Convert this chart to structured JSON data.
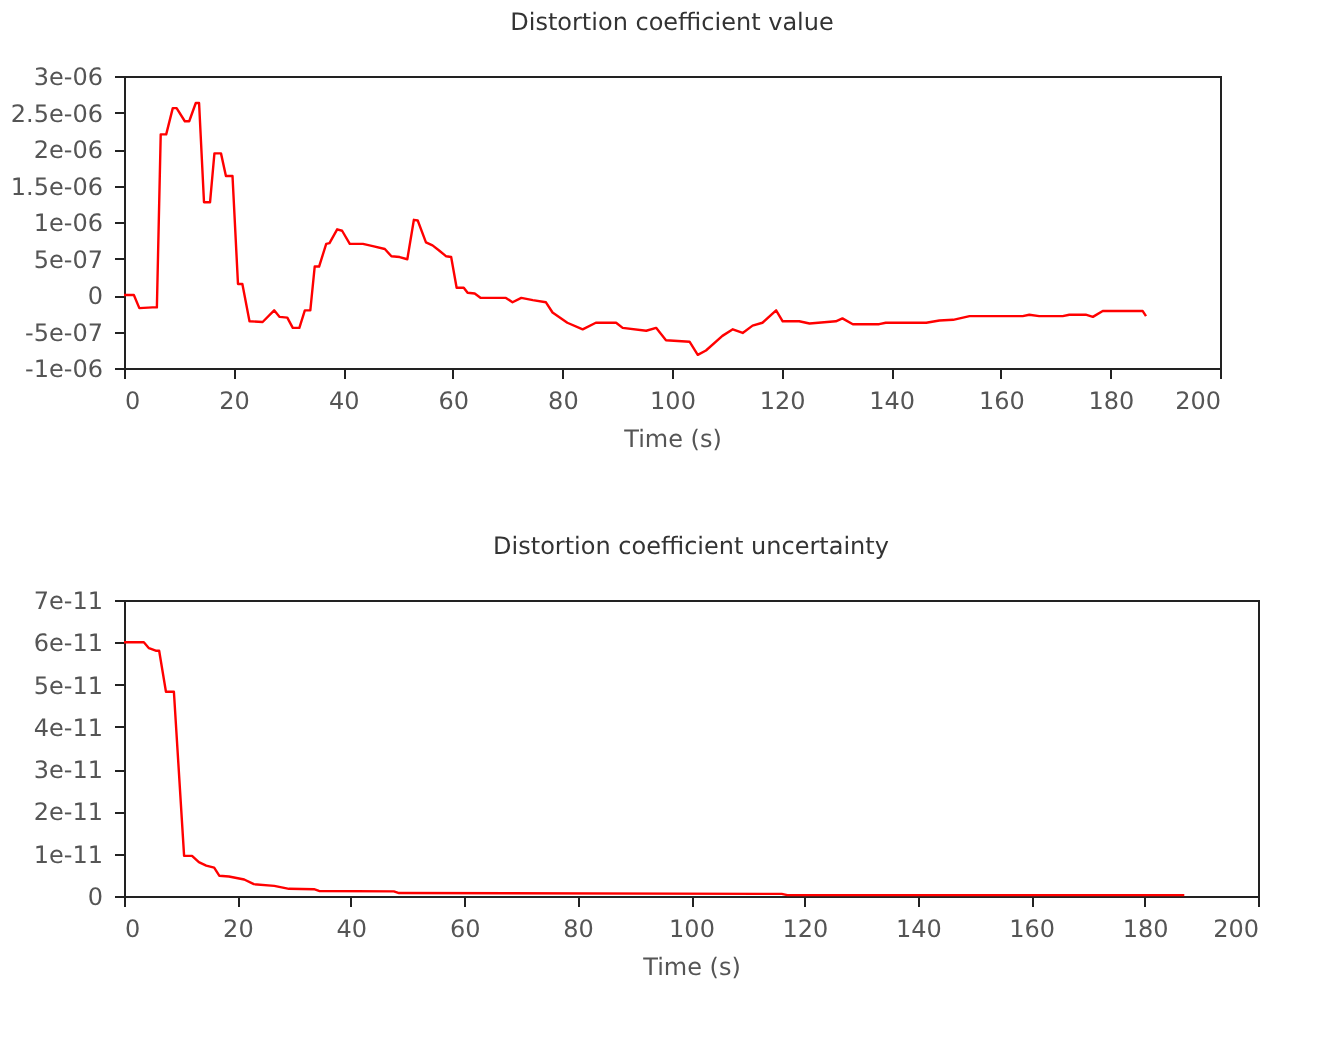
{
  "chart_data": [
    {
      "type": "line",
      "title": "Distortion coefficient value",
      "xlabel": "Time (s)",
      "color": "#ff0000",
      "grid": false,
      "x": [
        0,
        1.8,
        2.8,
        5.2,
        6,
        6.7,
        7.7,
        8.9,
        9.6,
        11.1,
        11.9,
        13.1,
        13.7,
        14.6,
        15.7,
        16.5,
        17.7,
        18.6,
        19.8,
        20.8,
        21.6,
        22.9,
        25.3,
        27.4,
        28.4,
        29.8,
        30.8,
        32,
        33,
        34,
        34.8,
        35.6,
        36.9,
        37.5,
        38.9,
        39.8,
        41.2,
        43.6,
        45.4,
        47.6,
        48.8,
        50.3,
        51.7,
        52.9,
        53.6,
        55.1,
        56.3,
        57.5,
        58.8,
        59.7,
        60.7,
        62,
        62.7,
        64,
        65.1,
        69.7,
        70.9,
        72.5,
        74.6,
        77,
        78.2,
        80.9,
        83.7,
        86.1,
        87,
        89.8,
        91,
        95.3,
        97.1,
        98.9,
        103.2,
        104.7,
        106.2,
        109.2,
        111.1,
        112.9,
        114.7,
        116.5,
        119,
        120.2,
        123.2,
        125.1,
        129.9,
        131.1,
        133,
        137.8,
        139,
        146.4,
        148.8,
        151.3,
        154.3,
        164,
        165.2,
        167,
        171.3,
        172.5,
        175.5,
        176.8,
        178.6,
        185.9,
        186.5
      ],
      "values": [
        0,
        0,
        -1.8e-07,
        -1.7e-07,
        -1.7e-07,
        2.2e-06,
        2.2e-06,
        2.56e-06,
        2.56e-06,
        2.38e-06,
        2.38e-06,
        2.63e-06,
        2.63e-06,
        1.27e-06,
        1.27e-06,
        1.94e-06,
        1.94e-06,
        1.63e-06,
        1.63e-06,
        1.5e-07,
        1.5e-07,
        -3.6e-07,
        -3.7e-07,
        -2.1e-07,
        -3e-07,
        -3.1e-07,
        -4.5e-07,
        -4.5e-07,
        -2.1e-07,
        -2.1e-07,
        3.9e-07,
        3.9e-07,
        7e-07,
        7.1e-07,
        9e-07,
        8.8e-07,
        7e-07,
        7e-07,
        6.7e-07,
        6.3e-07,
        5.3e-07,
        5.2e-07,
        4.9e-07,
        1.03e-06,
        1.02e-06,
        7.2e-07,
        6.8e-07,
        6.1e-07,
        5.3e-07,
        5.2e-07,
        1e-07,
        1e-07,
        3e-08,
        2e-08,
        -4e-08,
        -4e-08,
        -1e-07,
        -4e-08,
        -7e-08,
        -1e-07,
        -2.4e-07,
        -3.8e-07,
        -4.7e-07,
        -3.8e-07,
        -3.8e-07,
        -3.8e-07,
        -4.5e-07,
        -4.9e-07,
        -4.5e-07,
        -6.2e-07,
        -6.4e-07,
        -8.2e-07,
        -7.6e-07,
        -5.6e-07,
        -4.7e-07,
        -5.2e-07,
        -4.2e-07,
        -3.8e-07,
        -2.1e-07,
        -3.6e-07,
        -3.6e-07,
        -3.9e-07,
        -3.6e-07,
        -3.2e-07,
        -4e-07,
        -4e-07,
        -3.8e-07,
        -3.8e-07,
        -3.5e-07,
        -3.4e-07,
        -2.9e-07,
        -2.9e-07,
        -2.7e-07,
        -2.9e-07,
        -2.9e-07,
        -2.7e-07,
        -2.7e-07,
        -3e-07,
        -2.2e-07,
        -2.2e-07,
        -2.9e-07
      ],
      "xlim": [
        0,
        200
      ],
      "xticks": [
        0,
        20,
        40,
        60,
        80,
        100,
        120,
        140,
        160,
        180,
        200
      ],
      "ylim": [
        -1e-06,
        3e-06
      ],
      "yticks": [
        {
          "value": -1e-06,
          "label": "-1e-06"
        },
        {
          "value": -5e-07,
          "label": "-5e-07"
        },
        {
          "value": 0,
          "label": "0"
        },
        {
          "value": 5e-07,
          "label": "5e-07"
        },
        {
          "value": 1e-06,
          "label": "1e-06"
        },
        {
          "value": 1.5e-06,
          "label": "1.5e-06"
        },
        {
          "value": 2e-06,
          "label": "2e-06"
        },
        {
          "value": 2.5e-06,
          "label": "2.5e-06"
        },
        {
          "value": 3e-06,
          "label": "3e-06"
        }
      ]
    },
    {
      "type": "line",
      "title": "Distortion coefficient uncertainty",
      "xlabel": "Time (s)",
      "color": "#ff0000",
      "grid": false,
      "x": [
        0,
        3.5,
        4.4,
        5.6,
        6.2,
        7.4,
        8.8,
        10.6,
        12,
        13.2,
        14.5,
        15.9,
        16.8,
        18.5,
        21.2,
        22.9,
        26.5,
        29.1,
        33.5,
        34.4,
        47.6,
        48.5,
        116,
        117,
        187
      ],
      "values": [
        6e-11,
        6e-11,
        5.86e-11,
        5.8e-11,
        5.8e-11,
        4.83e-11,
        4.83e-11,
        9.5e-12,
        9.5e-12,
        8e-12,
        7.2e-12,
        6.7e-12,
        4.8e-12,
        4.6e-12,
        3.9e-12,
        2.8e-12,
        2.4e-12,
        1.7e-12,
        1.6e-12,
        1.2e-12,
        1.1e-12,
        7e-13,
        5e-13,
        2e-13,
        2e-13
      ],
      "xlim": [
        0,
        200
      ],
      "xticks": [
        0,
        20,
        40,
        60,
        80,
        100,
        120,
        140,
        160,
        180,
        200
      ],
      "ylim": [
        0,
        7e-11
      ],
      "yticks": [
        {
          "value": 0,
          "label": "0"
        },
        {
          "value": 1e-11,
          "label": "1e-11"
        },
        {
          "value": 2e-11,
          "label": "2e-11"
        },
        {
          "value": 3e-11,
          "label": "3e-11"
        },
        {
          "value": 4e-11,
          "label": "4e-11"
        },
        {
          "value": 5e-11,
          "label": "5e-11"
        },
        {
          "value": 6e-11,
          "label": "6e-11"
        },
        {
          "value": 7e-11,
          "label": "7e-11"
        }
      ]
    }
  ]
}
